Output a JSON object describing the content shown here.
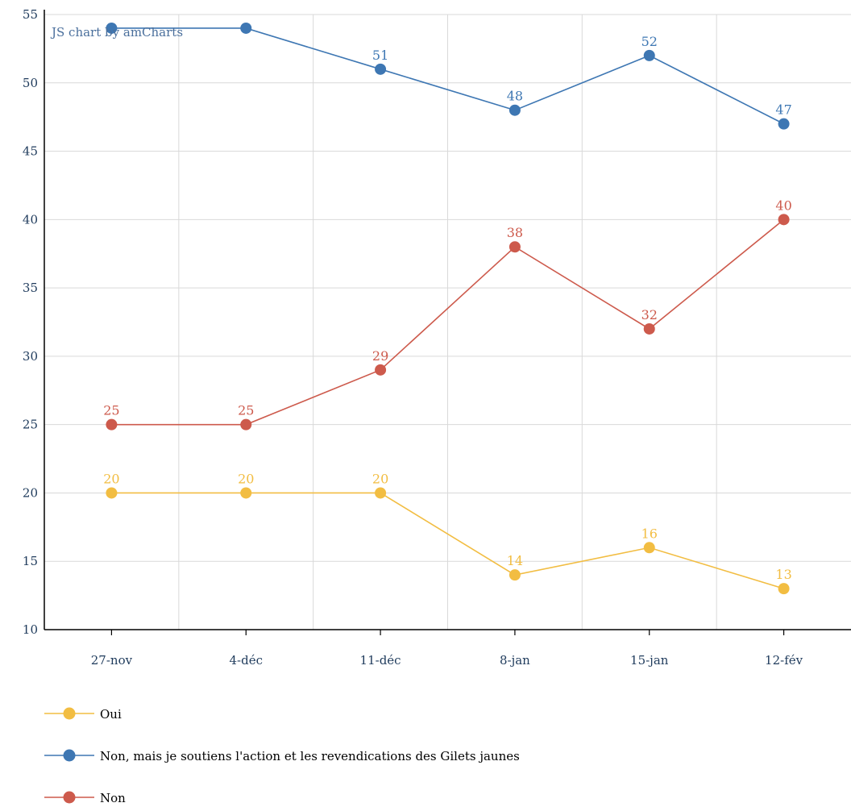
{
  "credit": "JS chart by amCharts",
  "chart_data": {
    "type": "line",
    "categories": [
      "27-nov",
      "4-déc",
      "11-déc",
      "8-jan",
      "15-jan",
      "12-fév"
    ],
    "ylim": [
      10,
      55
    ],
    "yticks": [
      10,
      15,
      20,
      25,
      30,
      35,
      40,
      45,
      50,
      55
    ],
    "grid": true,
    "legend_position": "bottom-left",
    "series": [
      {
        "name": "Oui",
        "color": "#f2bd42",
        "values": [
          20,
          20,
          20,
          14,
          16,
          13
        ]
      },
      {
        "name": "Non, mais je soutiens l'action et les revendications des Gilets jaunes",
        "color": "#3e77b3",
        "values": [
          54,
          54,
          51,
          48,
          52,
          47
        ]
      },
      {
        "name": "Non",
        "color": "#cd5a4c",
        "values": [
          25,
          25,
          29,
          38,
          32,
          40
        ]
      }
    ],
    "data_labels": [
      [
        "20",
        "20",
        "20",
        "14",
        "16",
        "13"
      ],
      [
        "",
        "",
        "51",
        "48",
        "52",
        "47"
      ],
      [
        "25",
        "25",
        "29",
        "38",
        "32",
        "40"
      ]
    ],
    "axis_color": "#1f3b5c",
    "text_color": "#000000"
  }
}
